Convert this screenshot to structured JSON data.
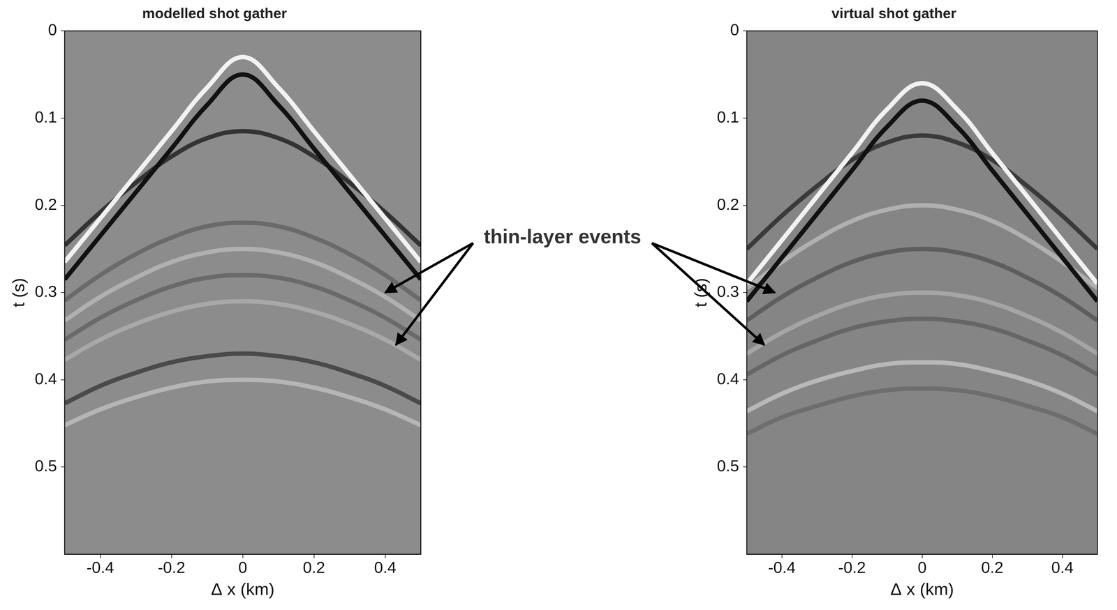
{
  "chart_data": [
    {
      "type": "line",
      "title": "modelled shot gather",
      "x_label": "Δ x (km)",
      "y_label": "t (s)",
      "x": [
        -0.5,
        -0.4,
        -0.3,
        -0.2,
        -0.1,
        0,
        0.1,
        0.2,
        0.3,
        0.4,
        0.5
      ],
      "xlim": [
        -0.5,
        0.5
      ],
      "xticks": [
        -0.4,
        -0.2,
        0,
        0.2,
        0.4
      ],
      "ylim": [
        0,
        0.6
      ],
      "yticks": [
        0,
        0.1,
        0.2,
        0.3,
        0.4,
        0.5
      ],
      "grid": false,
      "series": [
        {
          "color": "#f2f2f2",
          "values": [
            0.265,
            0.215,
            0.165,
            0.115,
            0.065,
            0.03,
            0.065,
            0.115,
            0.165,
            0.215,
            0.265
          ]
        },
        {
          "color": "#111111",
          "values": [
            0.285,
            0.235,
            0.185,
            0.135,
            0.085,
            0.05,
            0.085,
            0.135,
            0.185,
            0.235,
            0.285
          ]
        },
        {
          "color": "#333333",
          "values": [
            0.246,
            0.208,
            0.174,
            0.144,
            0.123,
            0.115,
            0.123,
            0.144,
            0.174,
            0.208,
            0.246
          ]
        },
        {
          "color": "#6a6a6a",
          "values": [
            0.309,
            0.28,
            0.256,
            0.237,
            0.224,
            0.22,
            0.224,
            0.237,
            0.256,
            0.28,
            0.309
          ]
        },
        {
          "color": "#b0b0b0",
          "values": [
            0.332,
            0.305,
            0.283,
            0.265,
            0.254,
            0.25,
            0.254,
            0.265,
            0.283,
            0.305,
            0.332
          ]
        },
        {
          "color": "#6a6a6a",
          "values": [
            0.354,
            0.329,
            0.309,
            0.293,
            0.283,
            0.28,
            0.283,
            0.293,
            0.309,
            0.329,
            0.354
          ]
        },
        {
          "color": "#a8a8a8",
          "values": [
            0.377,
            0.354,
            0.336,
            0.322,
            0.313,
            0.31,
            0.313,
            0.322,
            0.336,
            0.354,
            0.377
          ]
        },
        {
          "color": "#4a4a4a",
          "values": [
            0.427,
            0.407,
            0.392,
            0.38,
            0.373,
            0.37,
            0.373,
            0.38,
            0.392,
            0.407,
            0.427
          ]
        },
        {
          "color": "#b5b5b5",
          "values": [
            0.452,
            0.434,
            0.42,
            0.409,
            0.402,
            0.4,
            0.402,
            0.409,
            0.42,
            0.434,
            0.452
          ]
        }
      ]
    },
    {
      "type": "line",
      "title": "virtual shot gather",
      "x_label": "Δ x (km)",
      "y_label": "t (s)",
      "x": [
        -0.5,
        -0.4,
        -0.3,
        -0.2,
        -0.1,
        0,
        0.1,
        0.2,
        0.3,
        0.4,
        0.5
      ],
      "xlim": [
        -0.5,
        0.5
      ],
      "xticks": [
        -0.4,
        -0.2,
        0,
        0.2,
        0.4
      ],
      "ylim": [
        0,
        0.6
      ],
      "yticks": [
        0,
        0.1,
        0.2,
        0.3,
        0.4,
        0.5
      ],
      "grid": false,
      "series": [
        {
          "color": "#f2f2f2",
          "values": [
            0.29,
            0.24,
            0.19,
            0.14,
            0.09,
            0.06,
            0.09,
            0.14,
            0.19,
            0.24,
            0.29
          ]
        },
        {
          "color": "#111111",
          "values": [
            0.31,
            0.26,
            0.21,
            0.16,
            0.11,
            0.08,
            0.11,
            0.16,
            0.21,
            0.26,
            0.31
          ]
        },
        {
          "color": "#3a3a3a",
          "values": [
            0.25,
            0.212,
            0.178,
            0.148,
            0.128,
            0.12,
            0.128,
            0.148,
            0.178,
            0.212,
            0.25
          ]
        },
        {
          "color": "#b0b0b0",
          "values": [
            0.295,
            0.265,
            0.239,
            0.218,
            0.205,
            0.2,
            0.205,
            0.218,
            0.239,
            0.265,
            0.295
          ]
        },
        {
          "color": "#5e5e5e",
          "values": [
            0.332,
            0.305,
            0.283,
            0.265,
            0.254,
            0.25,
            0.254,
            0.265,
            0.283,
            0.305,
            0.332
          ]
        },
        {
          "color": "#a5a5a5",
          "values": [
            0.37,
            0.346,
            0.327,
            0.312,
            0.303,
            0.3,
            0.303,
            0.312,
            0.327,
            0.346,
            0.37
          ]
        },
        {
          "color": "#666666",
          "values": [
            0.394,
            0.372,
            0.355,
            0.341,
            0.333,
            0.33,
            0.333,
            0.341,
            0.355,
            0.372,
            0.394
          ]
        },
        {
          "color": "#b8b8b8",
          "values": [
            0.436,
            0.416,
            0.401,
            0.39,
            0.382,
            0.38,
            0.382,
            0.39,
            0.401,
            0.416,
            0.436
          ]
        },
        {
          "color": "#6e6e6e",
          "values": [
            0.462,
            0.443,
            0.43,
            0.419,
            0.412,
            0.41,
            0.412,
            0.419,
            0.43,
            0.443,
            0.462
          ]
        }
      ]
    }
  ],
  "annotation": {
    "text": "thin-layer events",
    "targets": [
      {
        "panel": 0,
        "x": 0.4,
        "t": 0.3
      },
      {
        "panel": 0,
        "x": 0.43,
        "t": 0.36
      },
      {
        "panel": 1,
        "x": -0.42,
        "t": 0.3
      },
      {
        "panel": 1,
        "x": -0.45,
        "t": 0.36
      }
    ]
  }
}
